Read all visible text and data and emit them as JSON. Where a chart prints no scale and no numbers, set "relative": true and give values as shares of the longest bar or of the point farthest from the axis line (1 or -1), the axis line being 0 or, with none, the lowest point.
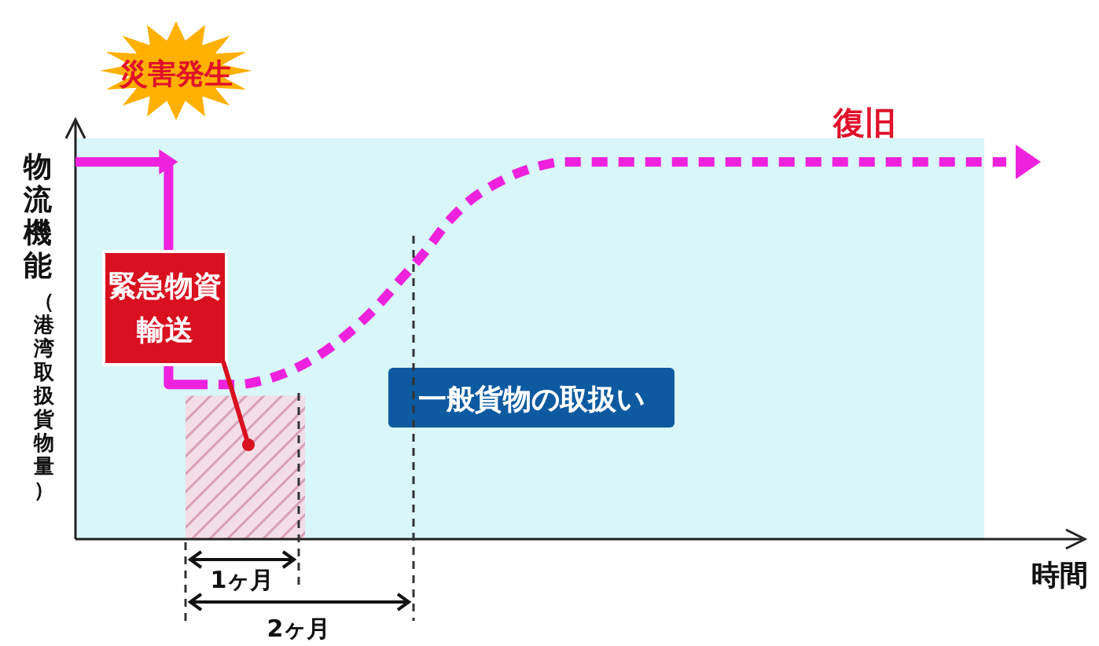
{
  "chart_data": {
    "type": "line",
    "relative": true,
    "ylabel": "物流機能（港湾取扱貨物量）",
    "xlabel": "時間",
    "categories": [
      null,
      null,
      null,
      null,
      null,
      null,
      null,
      null,
      null,
      null,
      null,
      null,
      null,
      null,
      null,
      null,
      null,
      null,
      null,
      null,
      null,
      null,
      null,
      null,
      null,
      null,
      null,
      null,
      null,
      null,
      null,
      null,
      null,
      null,
      null,
      null,
      null,
      null,
      null,
      null,
      null
    ],
    "series": [
      {
        "type": "step",
        "color": "#ee22dd",
        "line_style": "solid",
        "values": [
          1,
          1,
          1,
          1,
          1,
          0.41,
          null,
          null,
          null,
          null,
          null,
          null,
          null,
          null,
          null,
          null,
          null,
          null,
          null,
          null,
          null,
          null,
          null,
          null,
          null,
          null,
          null,
          null,
          null,
          null,
          null,
          null,
          null,
          null,
          null,
          null,
          null,
          null,
          null,
          null,
          null
        ]
      },
      {
        "type": "line",
        "color": "#ee22dd",
        "line_style": "dashed",
        "values": [
          null,
          null,
          null,
          null,
          null,
          0.41,
          0.41,
          0.41,
          0.42,
          0.44,
          0.47,
          0.51,
          0.56,
          0.62,
          0.69,
          0.76,
          0.84,
          0.9,
          0.94,
          0.97,
          0.99,
          1,
          1,
          1,
          1,
          1,
          1,
          1,
          1,
          1,
          1,
          1,
          1,
          1,
          1,
          1,
          1,
          1,
          1,
          1,
          1
        ]
      }
    ],
    "annotations": [
      "災害発生",
      "復旧",
      "緊急物資輸送",
      "一般貨物の取扱い",
      "1ヶ月",
      "2ヶ月"
    ]
  }
}
